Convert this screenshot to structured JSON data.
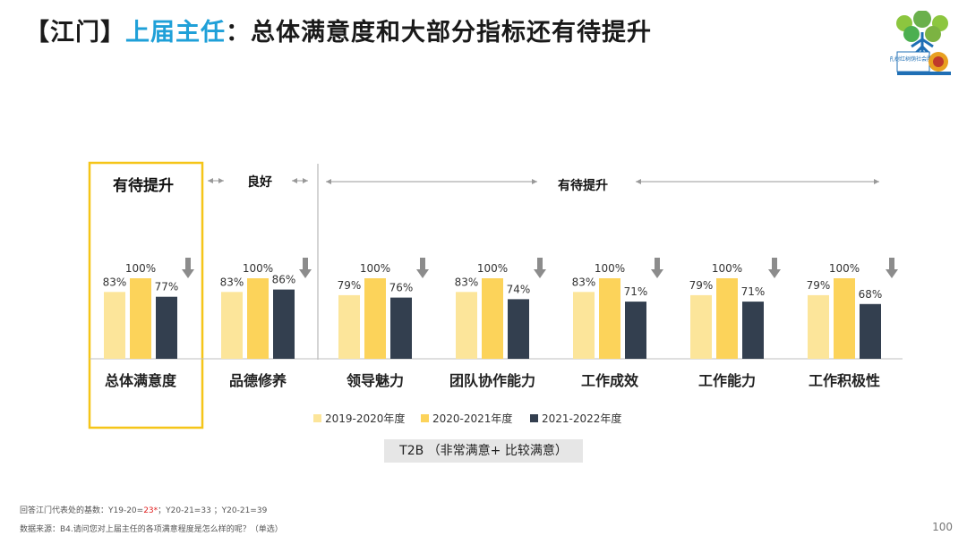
{
  "header": {
    "bracket_left": "【",
    "city": "江门",
    "bracket_right": "】",
    "highlight": "上届主任",
    "colon": "：",
    "subtitle": "总体满意度和大部分指标还有待提升"
  },
  "logo": {
    "text": "孔树红树荫社会服务",
    "name": "organization-logo"
  },
  "chart_data": {
    "type": "bar",
    "categories": [
      "总体满意度",
      "品德修养",
      "领导魅力",
      "团队协作能力",
      "工作成效",
      "工作能力",
      "工作积极性"
    ],
    "series": [
      {
        "name": "2019-2020年度",
        "color": "#fce59a",
        "values": [
          83,
          83,
          79,
          83,
          83,
          79,
          79
        ]
      },
      {
        "name": "2020-2021年度",
        "color": "#fcd35a",
        "values": [
          100,
          100,
          100,
          100,
          100,
          100,
          100
        ]
      },
      {
        "name": "2021-2022年度",
        "color": "#333f4f",
        "values": [
          77,
          86,
          76,
          74,
          71,
          71,
          68
        ]
      }
    ],
    "value_suffix": "%",
    "ylim": [
      0,
      100
    ],
    "trend": [
      "down",
      "down",
      "down",
      "down",
      "down",
      "down",
      "down"
    ],
    "group_labels": [
      "有待提升",
      "良好",
      "有待提升"
    ],
    "highlight_category": "总体满意度",
    "measure_label": "T2B （非常满意+ 比较满意）"
  },
  "colors": {
    "accent": "#1fa0d8",
    "highlight_box": "#f5c518",
    "arrow": "#8c8c8c"
  },
  "footnotes": {
    "base_prefix": "回答江门代表处的基数：Y19-20=",
    "base_y1920": "23*",
    "base_rest": "；Y20-21=33 ；Y20-21=39",
    "source": "数据来源：B4.请问您对上届主任的各项满意程度是怎么样的呢？（单选）"
  },
  "page": {
    "number": "100"
  }
}
